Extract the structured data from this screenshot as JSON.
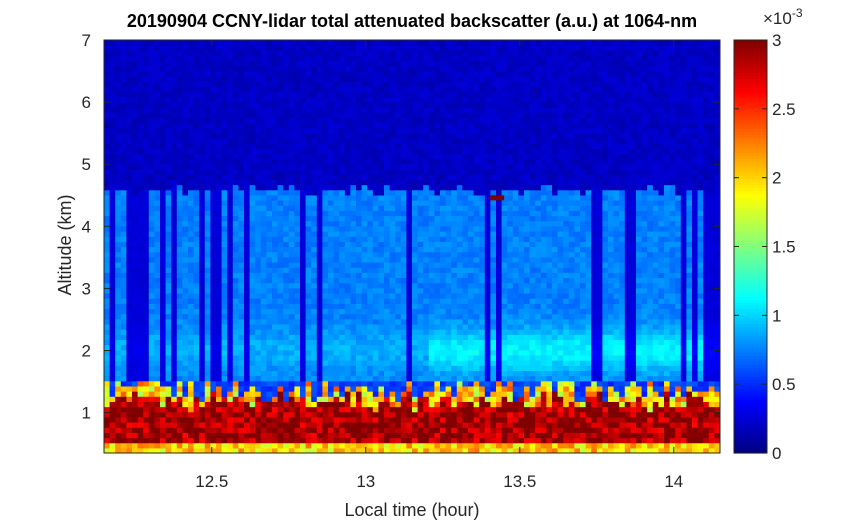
{
  "chart_data": {
    "type": "heatmap",
    "title": "20190904 CCNY-lidar total attenuated backscatter (a.u.) at 1064-nm",
    "xlabel": "Local time (hour)",
    "ylabel": "Altitude (km)",
    "xlim": [
      12.15,
      14.15
    ],
    "ylim": [
      0.35,
      7
    ],
    "xticks": [
      12.5,
      13,
      13.5,
      14
    ],
    "xtick_labels": [
      "12.5",
      "13",
      "13.5",
      "14"
    ],
    "yticks": [
      1,
      2,
      3,
      4,
      5,
      6,
      7
    ],
    "ytick_labels": [
      "1",
      "2",
      "3",
      "4",
      "5",
      "6",
      "7"
    ],
    "colorbar": {
      "colormap": "jet",
      "clim": [
        0,
        3
      ],
      "ticks": [
        0,
        0.5,
        1,
        1.5,
        2,
        2.5,
        3
      ],
      "tick_labels": [
        "0",
        "0.5",
        "1",
        "1.5",
        "2",
        "2.5",
        "3"
      ],
      "exponent_label": "×10",
      "exponent_power": "-3"
    },
    "features": {
      "boundary_layer_top_km": 1.3,
      "near_surface_saturated_km": [
        0.5,
        1.2
      ],
      "elevated_aerosol_layer_km": [
        1.5,
        4.6
      ],
      "elevated_layer_typical_value": 0.75,
      "background_value": 0.2,
      "cloud_spot": {
        "time": 13.42,
        "altitude_km": 4.45
      }
    }
  }
}
